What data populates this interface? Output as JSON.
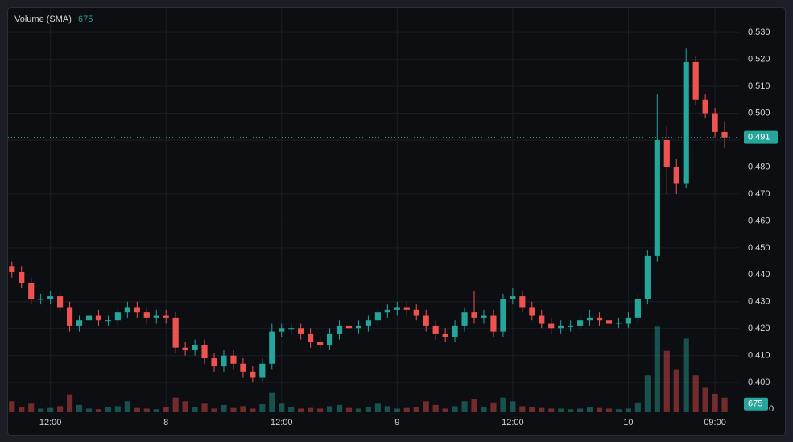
{
  "chart_data": {
    "type": "candlestick",
    "legend": {
      "title": "Volume (SMA)",
      "value": 675
    },
    "x": [
      8,
      9,
      10,
      11,
      12,
      13,
      14,
      15,
      16,
      17,
      18,
      19,
      20,
      21,
      22,
      23,
      24,
      25,
      26,
      27,
      28,
      29,
      30,
      31,
      32,
      33,
      34,
      35,
      36,
      37,
      38,
      39,
      40,
      41,
      42,
      43,
      44,
      45,
      46,
      47,
      48,
      49,
      50,
      51,
      52,
      53,
      54,
      55,
      56,
      57,
      58,
      59,
      60,
      61,
      62,
      63,
      64,
      65,
      66,
      67,
      68,
      69,
      70,
      71,
      72,
      73,
      74,
      75,
      76,
      77,
      78,
      79,
      80,
      81,
      82
    ],
    "open": [
      0.443,
      0.441,
      0.437,
      0.431,
      0.431,
      0.432,
      0.428,
      0.421,
      0.423,
      0.425,
      0.423,
      0.423,
      0.426,
      0.428,
      0.426,
      0.424,
      0.425,
      0.424,
      0.413,
      0.412,
      0.414,
      0.409,
      0.406,
      0.41,
      0.407,
      0.404,
      0.402,
      0.407,
      0.419,
      0.42,
      0.42,
      0.418,
      0.415,
      0.414,
      0.418,
      0.421,
      0.42,
      0.421,
      0.423,
      0.426,
      0.427,
      0.428,
      0.427,
      0.425,
      0.421,
      0.418,
      0.417,
      0.421,
      0.426,
      0.424,
      0.425,
      0.419,
      0.431,
      0.432,
      0.428,
      0.425,
      0.422,
      0.42,
      0.421,
      0.421,
      0.423,
      0.424,
      0.423,
      0.422,
      0.422,
      0.424,
      0.431,
      0.447,
      0.49,
      0.48,
      0.474,
      0.519,
      0.505,
      0.5,
      0.493
    ],
    "high": [
      0.445,
      0.443,
      0.439,
      0.433,
      0.434,
      0.434,
      0.43,
      0.425,
      0.427,
      0.427,
      0.425,
      0.428,
      0.43,
      0.43,
      0.428,
      0.427,
      0.427,
      0.426,
      0.415,
      0.416,
      0.416,
      0.411,
      0.412,
      0.412,
      0.409,
      0.406,
      0.409,
      0.422,
      0.422,
      0.422,
      0.422,
      0.42,
      0.417,
      0.42,
      0.423,
      0.423,
      0.423,
      0.425,
      0.428,
      0.429,
      0.43,
      0.43,
      0.429,
      0.427,
      0.423,
      0.42,
      0.423,
      0.428,
      0.434,
      0.427,
      0.427,
      0.433,
      0.435,
      0.434,
      0.43,
      0.427,
      0.424,
      0.423,
      0.423,
      0.425,
      0.427,
      0.426,
      0.425,
      0.424,
      0.426,
      0.433,
      0.449,
      0.507,
      0.495,
      0.483,
      0.524,
      0.521,
      0.507,
      0.502,
      0.497
    ],
    "low": [
      0.439,
      0.435,
      0.429,
      0.429,
      0.429,
      0.426,
      0.419,
      0.419,
      0.421,
      0.421,
      0.421,
      0.421,
      0.424,
      0.424,
      0.422,
      0.422,
      0.422,
      0.411,
      0.41,
      0.41,
      0.407,
      0.404,
      0.404,
      0.405,
      0.402,
      0.4,
      0.4,
      0.405,
      0.417,
      0.418,
      0.416,
      0.413,
      0.412,
      0.412,
      0.416,
      0.418,
      0.418,
      0.419,
      0.421,
      0.424,
      0.425,
      0.425,
      0.423,
      0.419,
      0.416,
      0.415,
      0.415,
      0.419,
      0.422,
      0.422,
      0.417,
      0.417,
      0.429,
      0.426,
      0.423,
      0.42,
      0.418,
      0.418,
      0.419,
      0.419,
      0.421,
      0.421,
      0.42,
      0.42,
      0.42,
      0.422,
      0.429,
      0.445,
      0.47,
      0.47,
      0.472,
      0.503,
      0.498,
      0.491,
      0.487
    ],
    "close": [
      0.441,
      0.437,
      0.431,
      0.431,
      0.432,
      0.428,
      0.421,
      0.423,
      0.425,
      0.423,
      0.423,
      0.426,
      0.428,
      0.426,
      0.424,
      0.425,
      0.424,
      0.413,
      0.412,
      0.414,
      0.409,
      0.406,
      0.41,
      0.407,
      0.404,
      0.402,
      0.407,
      0.419,
      0.42,
      0.42,
      0.418,
      0.415,
      0.414,
      0.418,
      0.421,
      0.42,
      0.421,
      0.423,
      0.426,
      0.427,
      0.428,
      0.427,
      0.425,
      0.421,
      0.418,
      0.417,
      0.421,
      0.426,
      0.424,
      0.425,
      0.419,
      0.431,
      0.432,
      0.428,
      0.425,
      0.422,
      0.42,
      0.421,
      0.421,
      0.423,
      0.424,
      0.423,
      0.422,
      0.422,
      0.424,
      0.431,
      0.447,
      0.49,
      0.48,
      0.474,
      0.519,
      0.505,
      0.5,
      0.493,
      0.491
    ],
    "volume": [
      900,
      400,
      700,
      300,
      350,
      500,
      1400,
      600,
      300,
      250,
      400,
      500,
      900,
      350,
      300,
      250,
      400,
      1200,
      900,
      400,
      700,
      300,
      600,
      350,
      500,
      300,
      650,
      1600,
      700,
      400,
      300,
      350,
      300,
      500,
      600,
      350,
      300,
      400,
      700,
      500,
      300,
      350,
      400,
      900,
      600,
      300,
      500,
      900,
      1100,
      400,
      800,
      1200,
      900,
      500,
      400,
      350,
      300,
      300,
      250,
      300,
      400,
      350,
      300,
      250,
      300,
      800,
      3000,
      7000,
      5000,
      3500,
      6000,
      3000,
      2000,
      1500,
      1200
    ],
    "up_color": "#26a69a",
    "down_color": "#ef5350",
    "last_price": 0.491,
    "xlim": [
      7.6,
      83.5
    ],
    "ylim": [
      0.389,
      0.539
    ],
    "volume_ylim": [
      0,
      8000
    ],
    "volume_yticks": [
      0
    ],
    "xticks": [
      {
        "value": 12,
        "label": "12:00"
      },
      {
        "value": 24,
        "label": "8"
      },
      {
        "value": 36,
        "label": "12:00"
      },
      {
        "value": 48,
        "label": "9"
      },
      {
        "value": 60,
        "label": "12:00"
      },
      {
        "value": 72,
        "label": "10"
      },
      {
        "value": 81,
        "label": "09:00"
      }
    ],
    "yticks": [
      {
        "value": 0.4,
        "label": "0.400"
      },
      {
        "value": 0.41,
        "label": "0.410"
      },
      {
        "value": 0.42,
        "label": "0.420"
      },
      {
        "value": 0.43,
        "label": "0.430"
      },
      {
        "value": 0.44,
        "label": "0.440"
      },
      {
        "value": 0.45,
        "label": "0.450"
      },
      {
        "value": 0.46,
        "label": "0.460"
      },
      {
        "value": 0.47,
        "label": "0.470"
      },
      {
        "value": 0.48,
        "label": "0.480"
      },
      {
        "value": 0.49,
        "label": "0.490"
      },
      {
        "value": 0.5,
        "label": "0.500"
      },
      {
        "value": 0.51,
        "label": "0.510"
      },
      {
        "value": 0.52,
        "label": "0.520"
      },
      {
        "value": 0.53,
        "label": "0.530"
      }
    ],
    "grid": true
  }
}
